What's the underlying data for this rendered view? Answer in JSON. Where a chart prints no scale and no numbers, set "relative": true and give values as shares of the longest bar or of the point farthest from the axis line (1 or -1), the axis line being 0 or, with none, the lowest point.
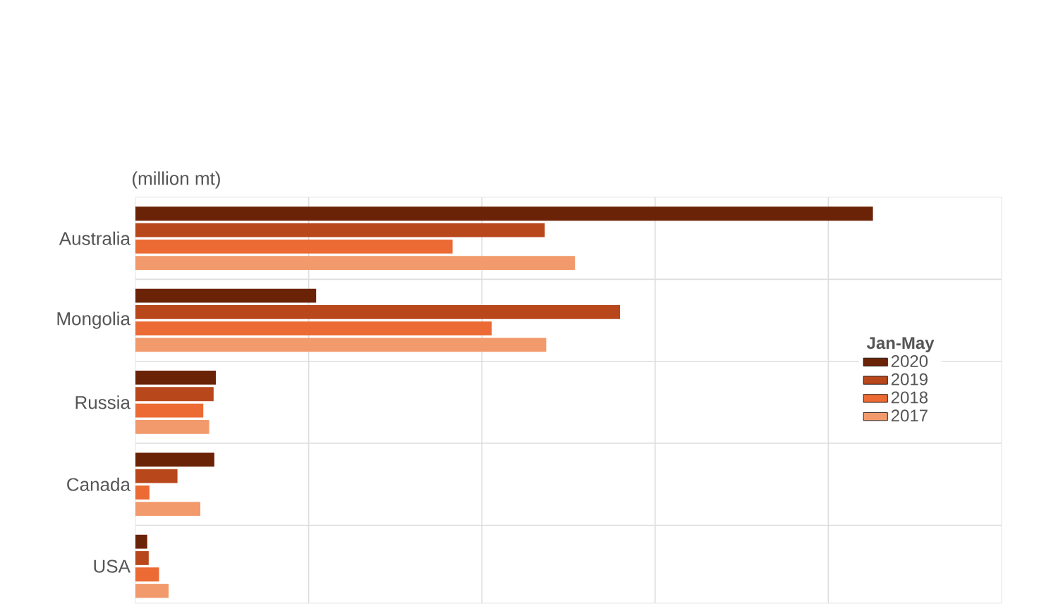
{
  "chart_data": {
    "type": "bar",
    "orientation": "horizontal",
    "relative": true,
    "xlabel": "(million mt)",
    "categories": [
      "Australia",
      "Mongolia",
      "Russia",
      "Canada",
      "USA"
    ],
    "series": [
      {
        "name": "2020",
        "color": "#6b2308",
        "values": [
          1.0,
          0.245,
          0.109,
          0.107,
          0.016
        ]
      },
      {
        "name": "2019",
        "color": "#b8471c",
        "values": [
          0.555,
          0.657,
          0.106,
          0.057,
          0.018
        ]
      },
      {
        "name": "2018",
        "color": "#ec6a34",
        "values": [
          0.43,
          0.483,
          0.092,
          0.019,
          0.032
        ]
      },
      {
        "name": "2017",
        "color": "#f29a6b",
        "values": [
          0.596,
          0.557,
          0.1,
          0.088,
          0.045
        ]
      }
    ],
    "legend_title": "Jan-May",
    "legend": "right",
    "grid": true
  }
}
